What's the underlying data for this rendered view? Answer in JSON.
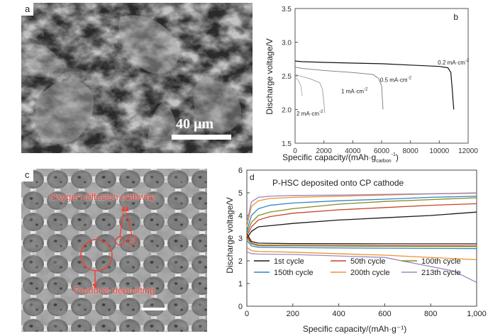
{
  "panel_a": {
    "label": "a",
    "scale_bar_text": "40 μm"
  },
  "panel_b": {
    "label": "b",
    "chart_data": {
      "type": "line",
      "xlabel": "Specific capacity/(mAh·g_carbon^-1)",
      "xlabel_main": "Specific capacity/(mAh·g",
      "xlabel_sub": "carbon",
      "xlabel_sup": "-1",
      "xlabel_close": ")",
      "ylabel": "Discharge voltage/V",
      "xlim": [
        0,
        12000
      ],
      "ylim": [
        1.5,
        3.5
      ],
      "xticks": [
        "0",
        "2000",
        "4000",
        "6000",
        "8000",
        "10000",
        "12000"
      ],
      "yticks": [
        "1.5",
        "2.0",
        "2.5",
        "3.0",
        "3.5"
      ],
      "series": [
        {
          "name": "0.2 mA·cm⁻²",
          "points": [
            [
              0,
              2.72
            ],
            [
              500,
              2.71
            ],
            [
              2000,
              2.7
            ],
            [
              4000,
              2.69
            ],
            [
              6000,
              2.68
            ],
            [
              8000,
              2.66
            ],
            [
              10000,
              2.64
            ],
            [
              10600,
              2.62
            ],
            [
              10800,
              2.55
            ],
            [
              10900,
              2.3
            ],
            [
              11000,
              2.0
            ]
          ]
        },
        {
          "name": "0.5 mA·cm⁻²",
          "points": [
            [
              0,
              2.63
            ],
            [
              500,
              2.61
            ],
            [
              2000,
              2.58
            ],
            [
              4000,
              2.55
            ],
            [
              5400,
              2.52
            ],
            [
              5800,
              2.46
            ],
            [
              6000,
              2.35
            ],
            [
              6100,
              2.0
            ]
          ]
        },
        {
          "name": "1 mA·cm⁻²",
          "points": [
            [
              0,
              2.52
            ],
            [
              300,
              2.5
            ],
            [
              1000,
              2.46
            ],
            [
              1700,
              2.4
            ],
            [
              1900,
              2.3
            ],
            [
              2000,
              2.1
            ],
            [
              2050,
              1.95
            ]
          ]
        },
        {
          "name": "2 mA·cm⁻²",
          "points": [
            [
              0,
              2.48
            ],
            [
              200,
              2.44
            ],
            [
              400,
              2.35
            ],
            [
              500,
              2.2
            ]
          ]
        }
      ]
    },
    "labels": {
      "s02": "0.2 mA·cm",
      "s05": "0.5 mA·cm",
      "s1": "1 mA·cm",
      "s2": "2 mA·cm",
      "sup": "-2"
    }
  },
  "panel_c": {
    "label": "c",
    "annotation_top": "Oxygen diffusion pathway",
    "annotation_bottom": "Products depositing",
    "annotation_color": "#e8443a"
  },
  "panel_d": {
    "label": "d",
    "chart_data": {
      "type": "line",
      "title": "P-HSC deposited onto CP cathode",
      "xlabel": "Specific capacity/(mAh·g⁻¹)",
      "ylabel": "Discharge voltage/V",
      "xlim": [
        0,
        1000
      ],
      "ylim": [
        0,
        6
      ],
      "xticks": [
        "0",
        "200",
        "400",
        "600",
        "800",
        "1,000"
      ],
      "yticks": [
        "0",
        "1",
        "2",
        "3",
        "4",
        "5",
        "6"
      ],
      "legend_position": "bottom-inside",
      "series": [
        {
          "name": "1st cycle",
          "color": "#1a1a1a",
          "charge": [
            [
              0,
              3.0
            ],
            [
              20,
              3.3
            ],
            [
              50,
              3.5
            ],
            [
              100,
              3.55
            ],
            [
              200,
              3.65
            ],
            [
              400,
              3.8
            ],
            [
              600,
              3.9
            ],
            [
              800,
              4.0
            ],
            [
              1000,
              4.15
            ]
          ],
          "discharge": [
            [
              0,
              3.2
            ],
            [
              20,
              2.85
            ],
            [
              50,
              2.78
            ],
            [
              200,
              2.76
            ],
            [
              600,
              2.75
            ],
            [
              1000,
              2.75
            ]
          ]
        },
        {
          "name": "50th cycle",
          "color": "#c8442a",
          "charge": [
            [
              0,
              3.1
            ],
            [
              20,
              3.5
            ],
            [
              50,
              3.8
            ],
            [
              100,
              3.95
            ],
            [
              200,
              4.1
            ],
            [
              400,
              4.25
            ],
            [
              600,
              4.35
            ],
            [
              800,
              4.45
            ],
            [
              1000,
              4.52
            ]
          ],
          "discharge": [
            [
              0,
              3.1
            ],
            [
              20,
              2.78
            ],
            [
              50,
              2.7
            ],
            [
              200,
              2.68
            ],
            [
              600,
              2.67
            ],
            [
              1000,
              2.66
            ]
          ]
        },
        {
          "name": "100th cycle",
          "color": "#8a8a20",
          "charge": [
            [
              0,
              3.2
            ],
            [
              20,
              3.7
            ],
            [
              50,
              4.0
            ],
            [
              100,
              4.15
            ],
            [
              200,
              4.3
            ],
            [
              400,
              4.5
            ],
            [
              600,
              4.62
            ],
            [
              800,
              4.7
            ],
            [
              1000,
              4.78
            ]
          ],
          "discharge": [
            [
              0,
              3.0
            ],
            [
              20,
              2.75
            ],
            [
              50,
              2.67
            ],
            [
              200,
              2.66
            ],
            [
              600,
              2.64
            ],
            [
              1000,
              2.63
            ]
          ]
        },
        {
          "name": "150th cycle",
          "color": "#2f86c8",
          "charge": [
            [
              0,
              3.3
            ],
            [
              20,
              4.0
            ],
            [
              50,
              4.3
            ],
            [
              100,
              4.45
            ],
            [
              200,
              4.55
            ],
            [
              400,
              4.65
            ],
            [
              600,
              4.72
            ],
            [
              800,
              4.8
            ],
            [
              1000,
              4.85
            ]
          ],
          "discharge": [
            [
              0,
              2.9
            ],
            [
              20,
              2.66
            ],
            [
              50,
              2.6
            ],
            [
              200,
              2.58
            ],
            [
              600,
              2.56
            ],
            [
              1000,
              2.54
            ]
          ]
        },
        {
          "name": "200th cycle",
          "color": "#f09030",
          "charge": [
            [
              0,
              3.5
            ],
            [
              20,
              4.4
            ],
            [
              50,
              4.65
            ],
            [
              100,
              4.75
            ],
            [
              200,
              4.8
            ],
            [
              400,
              4.85
            ],
            [
              600,
              4.9
            ],
            [
              800,
              4.95
            ],
            [
              1000,
              4.98
            ]
          ],
          "discharge": [
            [
              0,
              2.6
            ],
            [
              20,
              2.45
            ],
            [
              50,
              2.42
            ],
            [
              200,
              2.38
            ],
            [
              600,
              2.25
            ],
            [
              1000,
              2.05
            ]
          ]
        },
        {
          "name": "213th cycle",
          "color": "#9a8ac0",
          "charge": [
            [
              0,
              3.7
            ],
            [
              20,
              4.6
            ],
            [
              50,
              4.8
            ],
            [
              100,
              4.85
            ],
            [
              200,
              4.88
            ],
            [
              400,
              4.9
            ],
            [
              600,
              4.93
            ],
            [
              800,
              4.96
            ],
            [
              1000,
              5.0
            ]
          ],
          "discharge": [
            [
              0,
              2.4
            ],
            [
              20,
              2.32
            ],
            [
              50,
              2.3
            ],
            [
              200,
              2.28
            ],
            [
              600,
              2.15
            ],
            [
              900,
              1.55
            ],
            [
              1000,
              1.05
            ]
          ]
        }
      ]
    }
  }
}
